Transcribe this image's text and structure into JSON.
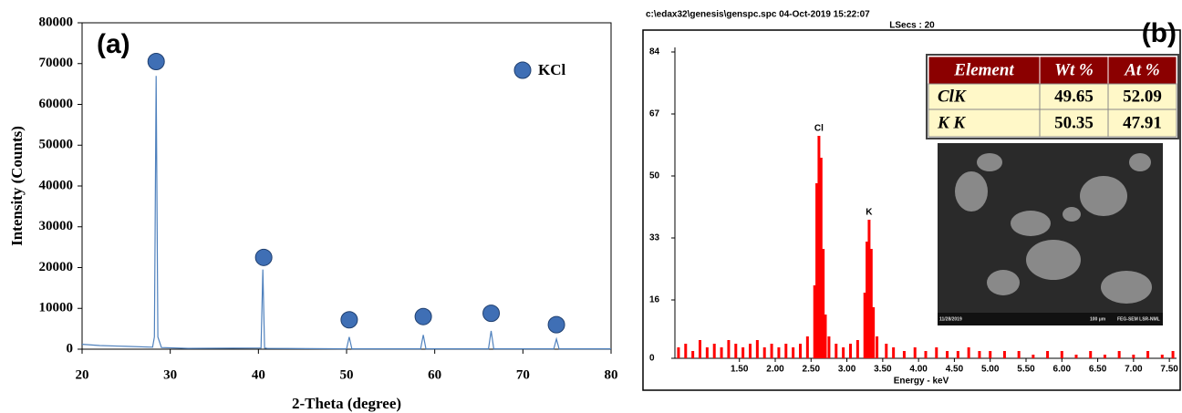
{
  "chart_data": [
    {
      "type": "line",
      "label": "(a)",
      "x_label": "2-Theta (degree)",
      "y_label": "Intensity (Counts)",
      "x": [
        20,
        22,
        25,
        28,
        28.2,
        28.4,
        28.6,
        29,
        32,
        40.3,
        40.5,
        40.7,
        41,
        50,
        50.3,
        50.6,
        58.4,
        58.7,
        59,
        66.1,
        66.4,
        66.7,
        73.5,
        73.8,
        74.1,
        80
      ],
      "values": [
        1200,
        900,
        700,
        500,
        3000,
        67000,
        3000,
        400,
        200,
        300,
        19500,
        300,
        200,
        100,
        3000,
        100,
        100,
        3500,
        100,
        100,
        4500,
        100,
        100,
        2500,
        100,
        100
      ],
      "color": "#4f81bd",
      "markers": {
        "name": "KCl",
        "color": "#3f6fb5",
        "x": [
          28.4,
          40.6,
          50.3,
          58.7,
          66.4,
          73.8
        ],
        "values": [
          70500,
          22500,
          7200,
          8000,
          8800,
          6000
        ]
      },
      "xlim": [
        20,
        80
      ],
      "xticks": [
        20,
        30,
        40,
        50,
        60,
        70,
        80
      ],
      "ylim": [
        0,
        80000
      ],
      "yticks": [
        0,
        10000,
        20000,
        30000,
        40000,
        50000,
        60000,
        70000,
        80000
      ]
    },
    {
      "type": "bar",
      "label": "(b)",
      "header": "c:\\edax32\\genesis\\genspc.spc  04-Oct-2019 15:22:07",
      "subheader": "LSecs : 20",
      "x_label": "Energy - keV",
      "x": [
        0.65,
        0.75,
        0.85,
        0.95,
        1.05,
        1.15,
        1.25,
        1.35,
        1.45,
        1.55,
        1.65,
        1.75,
        1.85,
        1.95,
        2.05,
        2.15,
        2.25,
        2.35,
        2.45,
        2.55,
        2.58,
        2.61,
        2.64,
        2.67,
        2.7,
        2.75,
        2.85,
        2.95,
        3.05,
        3.15,
        3.25,
        3.28,
        3.31,
        3.34,
        3.37,
        3.42,
        3.55,
        3.65,
        3.8,
        3.95,
        4.1,
        4.25,
        4.4,
        4.55,
        4.7,
        4.85,
        5.0,
        5.2,
        5.4,
        5.6,
        5.8,
        6.0,
        6.2,
        6.4,
        6.6,
        6.8,
        7.0,
        7.2,
        7.4,
        7.55
      ],
      "values": [
        3,
        4,
        2,
        5,
        3,
        4,
        3,
        5,
        4,
        3,
        4,
        5,
        3,
        4,
        3,
        4,
        3,
        4,
        6,
        20,
        48,
        61,
        55,
        30,
        12,
        6,
        4,
        3,
        4,
        5,
        18,
        32,
        38,
        30,
        14,
        6,
        4,
        3,
        2,
        3,
        2,
        3,
        2,
        2,
        3,
        2,
        2,
        2,
        2,
        1,
        2,
        2,
        1,
        2,
        1,
        2,
        1,
        2,
        1,
        2
      ],
      "color": "#ff0000",
      "annotations": [
        {
          "text": "Cl",
          "x": 2.61
        },
        {
          "text": "K",
          "x": 3.31
        }
      ],
      "xlim": [
        0.6,
        7.6
      ],
      "xticks": [
        {
          "value": 1.5,
          "label": "1.50"
        },
        {
          "value": 2,
          "label": "2.00"
        },
        {
          "value": 2.5,
          "label": "2.50"
        },
        {
          "value": 3,
          "label": "3.00"
        },
        {
          "value": 3.5,
          "label": "3.50"
        },
        {
          "value": 4,
          "label": "4.00"
        },
        {
          "value": 4.5,
          "label": "4.50"
        },
        {
          "value": 5,
          "label": "5.00"
        },
        {
          "value": 5.5,
          "label": "5.50"
        },
        {
          "value": 6,
          "label": "6.00"
        },
        {
          "value": 6.5,
          "label": "6.50"
        },
        {
          "value": 7,
          "label": "7.00"
        },
        {
          "value": 7.5,
          "label": "7.50"
        }
      ],
      "ylim": [
        0,
        84
      ],
      "yticks": [
        0,
        16,
        33,
        50,
        67,
        84
      ],
      "table": {
        "columns": [
          "Element",
          "Wt %",
          "At %"
        ],
        "rows": [
          [
            "ClK",
            49.65,
            52.09
          ],
          [
            "K K",
            50.35,
            47.91
          ]
        ]
      },
      "image_caption": [
        "11/28/2019",
        "100 μm",
        "FEG-SEM  LSR-NML"
      ]
    }
  ]
}
